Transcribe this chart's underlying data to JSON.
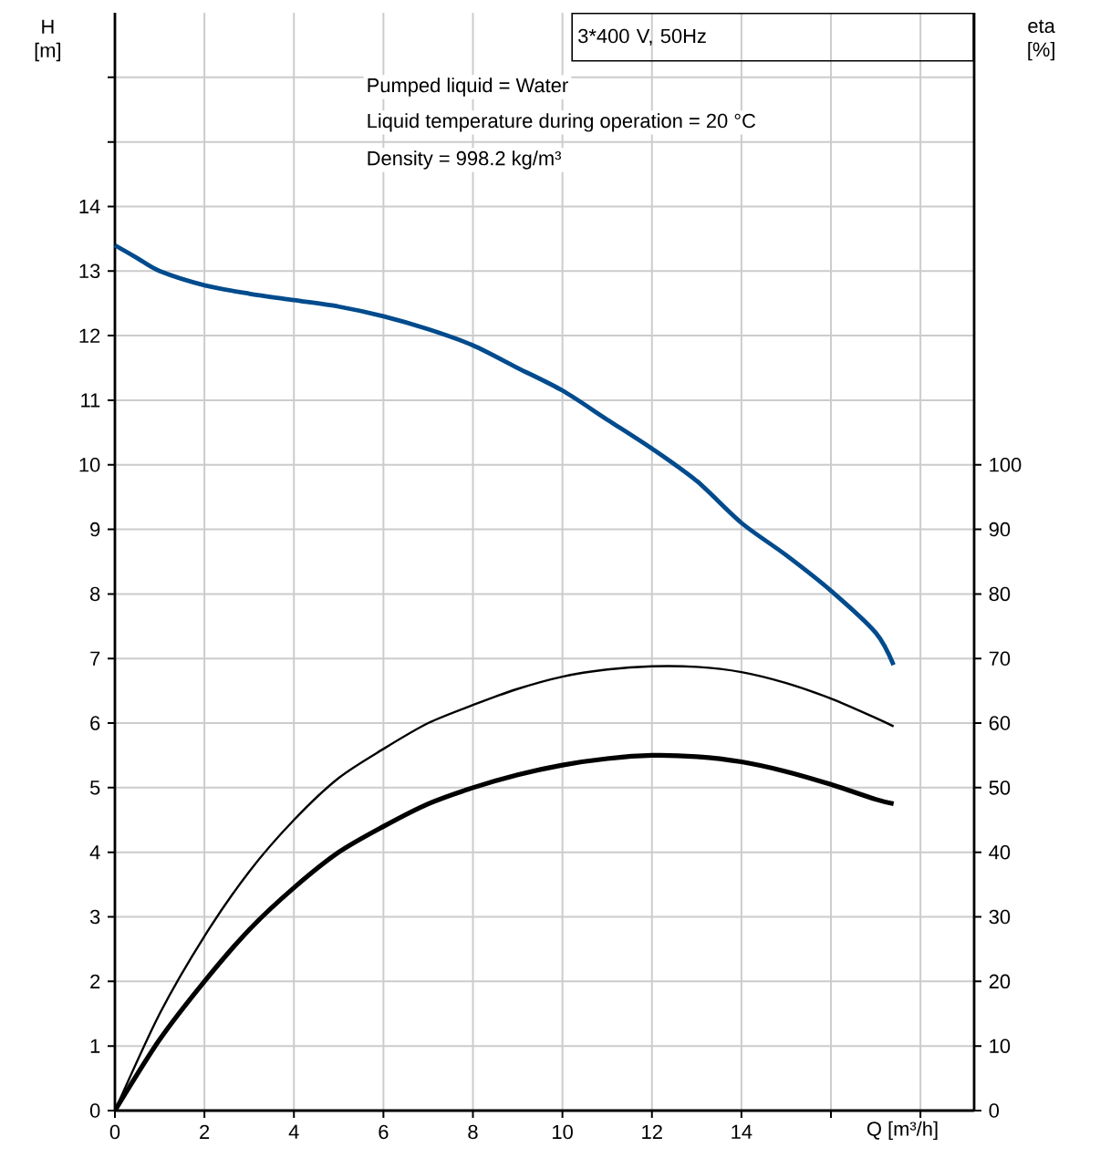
{
  "chart_data": {
    "type": "line",
    "title": "3*400 V, 50Hz",
    "annotations": [
      "Pumped liquid = Water",
      "Liquid temperature during operation = 20 °C",
      "Density = 998.2 kg/m³"
    ],
    "xlabel": "Q [m³/h]",
    "ylabel": "H [m]",
    "y2label": "eta [%]",
    "xlim": [
      0,
      19.2
    ],
    "ylim": [
      0,
      17
    ],
    "y2lim": [
      0,
      170
    ],
    "xticks": [
      0,
      2,
      4,
      6,
      8,
      10,
      12,
      14,
      {
        "value": 16,
        "label": null
      },
      {
        "value": 18,
        "label": null
      }
    ],
    "yticks": [
      0,
      1,
      2,
      3,
      4,
      5,
      6,
      7,
      8,
      9,
      10,
      11,
      12,
      13,
      14,
      {
        "value": 15,
        "label": null
      },
      {
        "value": 16,
        "label": null
      }
    ],
    "y2ticks": [
      0,
      10,
      20,
      30,
      40,
      50,
      60,
      70,
      80,
      90,
      100
    ],
    "grid": true,
    "marker": "none",
    "line_style": "solid",
    "series": [
      {
        "color": "#004b8d",
        "x": [
          0,
          0.5,
          1,
          2,
          3,
          4,
          5,
          6,
          7,
          8,
          9,
          10,
          11,
          12,
          13,
          14,
          15,
          16,
          17,
          17.4
        ],
        "values": [
          13.4,
          13.2,
          13.0,
          12.78,
          12.65,
          12.55,
          12.45,
          12.3,
          12.1,
          11.85,
          11.5,
          11.15,
          10.7,
          10.25,
          9.75,
          9.1,
          8.6,
          8.05,
          7.4,
          6.9
        ]
      },
      {
        "color": "#000000",
        "axis": "y2",
        "x": [
          0,
          1,
          2,
          3,
          4,
          5,
          6,
          7,
          8,
          9,
          10,
          11,
          12,
          13,
          14,
          15,
          16,
          17,
          17.4
        ],
        "values": [
          0,
          15,
          27,
          37,
          45,
          51.5,
          56,
          60,
          62.8,
          65.3,
          67.2,
          68.3,
          68.8,
          68.7,
          67.9,
          66.2,
          63.8,
          60.8,
          59.5
        ]
      },
      {
        "color": "#000000",
        "axis": "y2",
        "x": [
          0,
          1,
          2,
          3,
          4,
          5,
          6,
          7,
          8,
          9,
          10,
          11,
          12,
          13,
          14,
          15,
          16,
          17,
          17.4
        ],
        "values": [
          0,
          11,
          20,
          28,
          34.5,
          40,
          44,
          47.5,
          50,
          52,
          53.5,
          54.5,
          55,
          54.8,
          54,
          52.5,
          50.5,
          48.2,
          47.5
        ]
      }
    ]
  }
}
